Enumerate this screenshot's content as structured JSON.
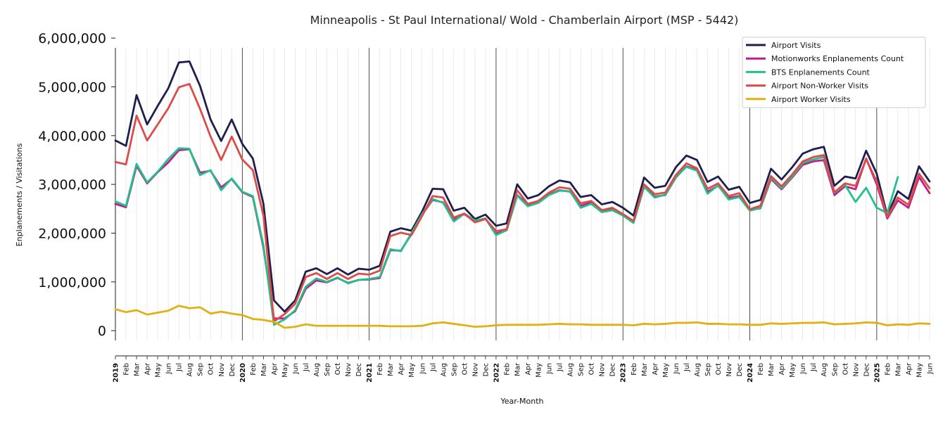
{
  "chart_data": {
    "type": "line",
    "title": "Minneapolis - St Paul International/ Wold - Chamberlain Airport (MSP - 5442)",
    "xlabel": "Year-Month",
    "ylabel": "Enplanements / Visitations",
    "ylim": [
      -200000,
      5800000
    ],
    "yticks": [
      {
        "value": 0,
        "label": "0"
      },
      {
        "value": 1000000,
        "label": "1,000,000"
      },
      {
        "value": 2000000,
        "label": "2,000,000"
      },
      {
        "value": 3000000,
        "label": "3,000,000"
      },
      {
        "value": 4000000,
        "label": "4,000,000"
      },
      {
        "value": 5000000,
        "label": "5,000,000"
      },
      {
        "value": 6000000,
        "label": "6,000,000"
      }
    ],
    "grid": "vertical",
    "legend_position": "top-right",
    "x": [
      "2019",
      "Feb",
      "Mar",
      "Apr",
      "May",
      "Jun",
      "Jul",
      "Aug",
      "Sep",
      "Oct",
      "Nov",
      "Dec",
      "2020",
      "Feb",
      "Mar",
      "Apr",
      "May",
      "Jun",
      "Jul",
      "Aug",
      "Sep",
      "Oct",
      "Nov",
      "Dec",
      "2021",
      "Feb",
      "Mar",
      "Apr",
      "May",
      "Jun",
      "Jul",
      "Aug",
      "Sep",
      "Oct",
      "Nov",
      "Dec",
      "2022",
      "Feb",
      "Mar",
      "Apr",
      "May",
      "Jun",
      "Jul",
      "Aug",
      "Sep",
      "Oct",
      "Nov",
      "Dec",
      "2023",
      "Feb",
      "Mar",
      "Apr",
      "May",
      "Jun",
      "Jul",
      "Aug",
      "Sep",
      "Oct",
      "Nov",
      "Dec",
      "2024",
      "Feb",
      "Mar",
      "Apr",
      "May",
      "Jun",
      "Jul",
      "Aug",
      "Sep",
      "Oct",
      "Nov",
      "Dec",
      "2025",
      "Feb",
      "Mar",
      "Apr",
      "May",
      "Jun"
    ],
    "year_labels": [
      "2019",
      "2020",
      "2021",
      "2022",
      "2023",
      "2024",
      "2025"
    ],
    "series": [
      {
        "name": "Airport Visits",
        "color": "#1f1f4f",
        "values": [
          3900000,
          3790000,
          4830000,
          4230000,
          4610000,
          4970000,
          5500000,
          5520000,
          5020000,
          4330000,
          3890000,
          4330000,
          3830000,
          3530000,
          2600000,
          620000,
          390000,
          620000,
          1210000,
          1280000,
          1160000,
          1280000,
          1150000,
          1270000,
          1250000,
          1330000,
          2030000,
          2100000,
          2050000,
          2440000,
          2910000,
          2900000,
          2460000,
          2520000,
          2290000,
          2380000,
          2150000,
          2200000,
          3000000,
          2710000,
          2780000,
          2960000,
          3080000,
          3040000,
          2740000,
          2780000,
          2590000,
          2640000,
          2520000,
          2360000,
          3140000,
          2930000,
          2970000,
          3350000,
          3590000,
          3500000,
          3050000,
          3160000,
          2890000,
          2950000,
          2620000,
          2680000,
          3320000,
          3100000,
          3350000,
          3630000,
          3720000,
          3770000,
          2970000,
          3160000,
          3120000,
          3690000,
          3220000,
          2360000,
          2860000,
          2700000,
          3370000,
          3060000
        ]
      },
      {
        "name": "Motionworks Enplanements Count",
        "color": "#c21c8c",
        "values": [
          2600000,
          2530000,
          3380000,
          3020000,
          3250000,
          3450000,
          3700000,
          3720000,
          3240000,
          3280000,
          2940000,
          3110000,
          2840000,
          2740000,
          1700000,
          250000,
          250000,
          400000,
          860000,
          1030000,
          990000,
          1080000,
          980000,
          1040000,
          1050000,
          1080000,
          1650000,
          1640000,
          1980000,
          2380000,
          2680000,
          2630000,
          2280000,
          2390000,
          2240000,
          2300000,
          1990000,
          2060000,
          2780000,
          2580000,
          2640000,
          2790000,
          2880000,
          2850000,
          2560000,
          2630000,
          2470000,
          2490000,
          2390000,
          2230000,
          2980000,
          2750000,
          2780000,
          3140000,
          3370000,
          3300000,
          2850000,
          2970000,
          2720000,
          2760000,
          2470000,
          2510000,
          3110000,
          2900000,
          3140000,
          3400000,
          3470000,
          3500000,
          2780000,
          2960000,
          2900000,
          3530000,
          3000000,
          2300000,
          2670000,
          2520000,
          3150000,
          2820000
        ]
      },
      {
        "name": "BTS Enplanements Count",
        "color": "#22c08f",
        "values": [
          2650000,
          2560000,
          3420000,
          3040000,
          3260000,
          3520000,
          3740000,
          3730000,
          3190000,
          3290000,
          2880000,
          3120000,
          2850000,
          2760000,
          1750000,
          120000,
          230000,
          420000,
          900000,
          1070000,
          1000000,
          1090000,
          970000,
          1040000,
          1060000,
          1100000,
          1670000,
          1630000,
          2000000,
          2390000,
          2700000,
          2620000,
          2240000,
          2400000,
          2260000,
          2300000,
          1960000,
          2060000,
          2770000,
          2550000,
          2620000,
          2780000,
          2870000,
          2860000,
          2520000,
          2600000,
          2430000,
          2470000,
          2360000,
          2210000,
          2950000,
          2730000,
          2790000,
          3150000,
          3360000,
          3280000,
          2810000,
          2980000,
          2690000,
          2740000,
          2460000,
          2520000,
          3140000,
          2920000,
          3160000,
          3440000,
          3510000,
          3560000,
          2830000,
          2990000,
          2640000,
          2930000,
          2520000,
          2410000,
          3150000,
          null,
          null,
          null
        ]
      },
      {
        "name": "Airport Non-Worker Visits",
        "color": "#db4b48",
        "values": [
          3460000,
          3410000,
          4410000,
          3900000,
          4230000,
          4560000,
          4990000,
          5060000,
          4550000,
          3980000,
          3500000,
          3980000,
          3510000,
          3290000,
          2360000,
          190000,
          340000,
          550000,
          1100000,
          1180000,
          1060000,
          1180000,
          1060000,
          1170000,
          1150000,
          1230000,
          1940000,
          2010000,
          1960000,
          2350000,
          2760000,
          2730000,
          2320000,
          2400000,
          2220000,
          2290000,
          2040000,
          2080000,
          2880000,
          2600000,
          2660000,
          2830000,
          2940000,
          2910000,
          2610000,
          2660000,
          2470000,
          2520000,
          2390000,
          2250000,
          3000000,
          2800000,
          2830000,
          3190000,
          3430000,
          3330000,
          2910000,
          3020000,
          2760000,
          2820000,
          2490000,
          2560000,
          3170000,
          2960000,
          3200000,
          3470000,
          3560000,
          3600000,
          2840000,
          3020000,
          2970000,
          3520000,
          3060000,
          2330000,
          2730000,
          2580000,
          3220000,
          2920000
        ]
      },
      {
        "name": "Airport Worker Visits",
        "color": "#e0b014",
        "values": [
          440000,
          380000,
          420000,
          330000,
          370000,
          410000,
          510000,
          460000,
          480000,
          350000,
          390000,
          350000,
          320000,
          240000,
          220000,
          180000,
          60000,
          80000,
          130000,
          100000,
          100000,
          100000,
          100000,
          100000,
          100000,
          100000,
          90000,
          90000,
          90000,
          100000,
          150000,
          170000,
          140000,
          110000,
          80000,
          90000,
          110000,
          120000,
          120000,
          120000,
          120000,
          130000,
          140000,
          130000,
          130000,
          120000,
          120000,
          120000,
          120000,
          110000,
          140000,
          130000,
          140000,
          160000,
          160000,
          170000,
          140000,
          140000,
          130000,
          130000,
          120000,
          120000,
          150000,
          140000,
          150000,
          160000,
          160000,
          170000,
          130000,
          140000,
          150000,
          170000,
          160000,
          110000,
          130000,
          120000,
          150000,
          140000
        ]
      }
    ]
  }
}
